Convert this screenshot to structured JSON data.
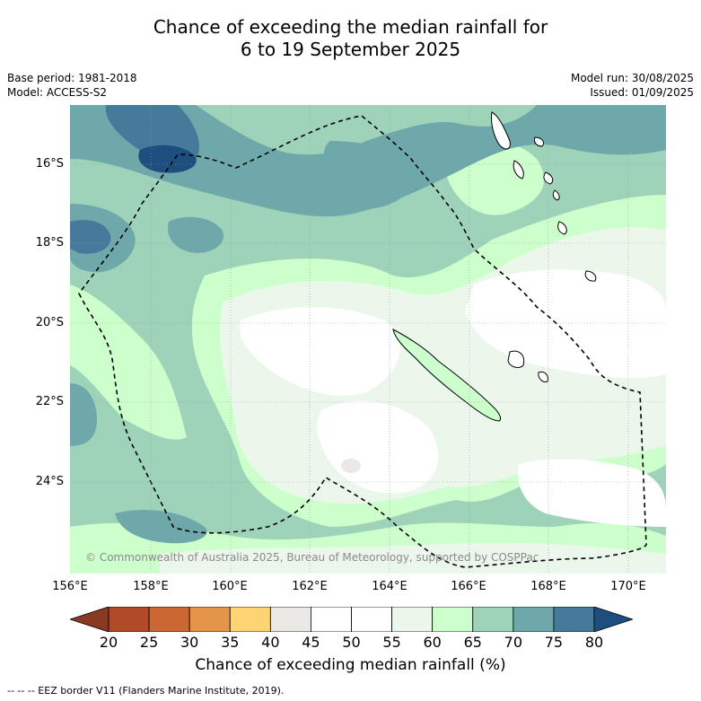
{
  "title_line1": "Chance of exceeding the median rainfall for",
  "title_line2": "6 to 19 September 2025",
  "base_period": "Base period: 1981-2018",
  "model": "Model: ACCESS-S2",
  "model_run": "Model run: 30/08/2025",
  "issued": "Issued: 01/09/2025",
  "copyright": "© Commonwealth of Australia 2025, Bureau of Meteorology, supported by COSPPac",
  "lat_labels": [
    "16°S",
    "18°S",
    "20°S",
    "22°S",
    "24°S"
  ],
  "lon_labels": [
    "156°E",
    "158°E",
    "160°E",
    "162°E",
    "164°E",
    "166°E",
    "168°E",
    "170°E"
  ],
  "colorbar": {
    "ticks": [
      "20",
      "25",
      "30",
      "35",
      "40",
      "45",
      "50",
      "55",
      "60",
      "65",
      "70",
      "75",
      "80"
    ],
    "colors": [
      "#8b3a22",
      "#b14a26",
      "#cc6633",
      "#e59548",
      "#fed472",
      "#ebe9e5",
      "#ffffff",
      "#ffffff",
      "#ecf7ec",
      "#ccffcc",
      "#9ed3ba",
      "#6fa8aa",
      "#457a9a",
      "#1e4e7e"
    ],
    "title": "Chance of exceeding median rainfall (%)"
  },
  "footnote": "--  --  -- EEZ border V11 (Flanders Marine Institute, 2019).",
  "colors": {
    "c45_50": "#ebe9e5",
    "c50_60": "#ffffff",
    "c55_60": "#ecf7ec",
    "c60_65": "#ccffcc",
    "c65_70": "#9ed3ba",
    "c70_75": "#6fa8aa",
    "c75_80": "#457a9a",
    "c80": "#1e4e7e"
  }
}
